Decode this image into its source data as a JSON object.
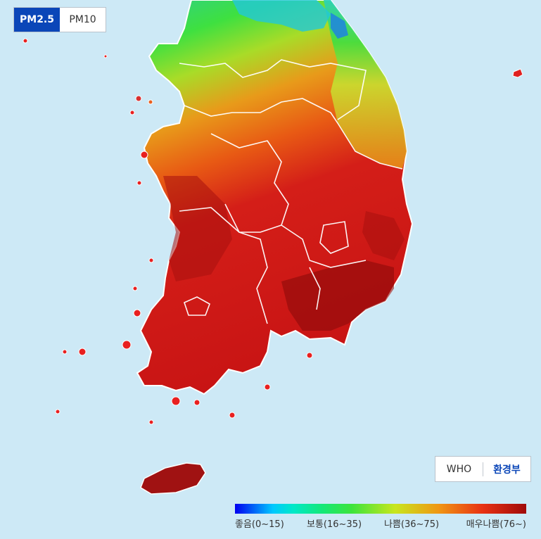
{
  "pm_toggle": {
    "options": [
      "PM2.5",
      "PM10"
    ],
    "selected": "PM2.5"
  },
  "standard_toggle": {
    "options": [
      "WHO",
      "환경부"
    ],
    "selected": "환경부"
  },
  "legend": {
    "labels": [
      "좋음(0~15)",
      "보통(16~35)",
      "나쁨(36~75)",
      "매우나쁨(76~)"
    ]
  },
  "colors": {
    "water": "#cde9f6",
    "good": "#00c8ff",
    "normal": "#3ce43c",
    "bad": "#f09614",
    "very_bad": "#a00a0a",
    "accent": "#0b46b8"
  }
}
